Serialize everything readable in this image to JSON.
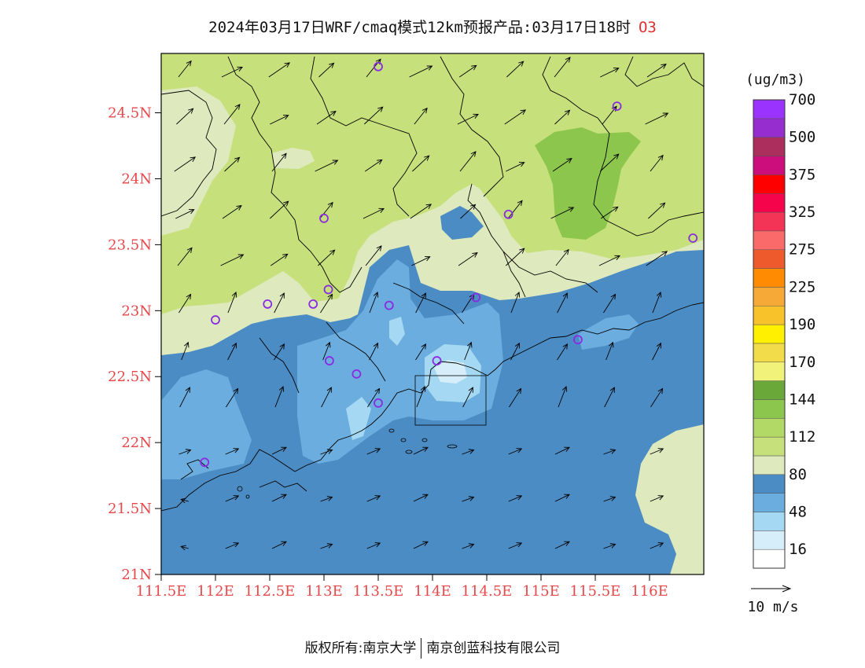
{
  "header": {
    "title": "2024年03月17日WRF/cmaq模式12km预报产品:03月17日18时",
    "pollutant": "O3"
  },
  "axes": {
    "lat_labels": [
      "24.5N",
      "24N",
      "23.5N",
      "23N",
      "22.5N",
      "22N",
      "21.5N",
      "21N"
    ],
    "lon_labels": [
      "111.5E",
      "112E",
      "112.5E",
      "113E",
      "113.5E",
      "114E",
      "114.5E",
      "115E",
      "115.5E",
      "116E"
    ],
    "label_color": "#e8474a"
  },
  "legend": {
    "unit": "(ug/m3)",
    "bands": [
      {
        "color": "#ffffff"
      },
      {
        "color": "#d6eef9"
      },
      {
        "color": "#a5d8f2"
      },
      {
        "color": "#6badde"
      },
      {
        "color": "#4b8cc4"
      },
      {
        "color": "#dfe9be"
      },
      {
        "color": "#c6e07c"
      },
      {
        "color": "#b2d865"
      },
      {
        "color": "#8dc64c"
      },
      {
        "color": "#6aa83a"
      },
      {
        "color": "#f1f27a"
      },
      {
        "color": "#f2dc4a"
      },
      {
        "color": "#fef000"
      },
      {
        "color": "#f8c22a"
      },
      {
        "color": "#f7a937"
      },
      {
        "color": "#fe8b01"
      },
      {
        "color": "#ef5a2c"
      },
      {
        "color": "#fb6a6a"
      },
      {
        "color": "#f33456"
      },
      {
        "color": "#f5044c"
      },
      {
        "color": "#fe0000"
      },
      {
        "color": "#cb0e7c"
      },
      {
        "color": "#ab2e5d"
      },
      {
        "color": "#962dce"
      },
      {
        "color": "#9b33ff"
      }
    ],
    "labels": [
      "16",
      "48",
      "80",
      "112",
      "144",
      "170",
      "190",
      "225",
      "275",
      "325",
      "375",
      "500",
      "700"
    ]
  },
  "wind_reference": {
    "label": "10 m/s"
  },
  "footer": {
    "copyright": "版权所有:南京大学",
    "company": "南京创蓝科技有限公司"
  },
  "map_data": {
    "lon_range": [
      111.5,
      116.5
    ],
    "lat_range": [
      21.0,
      24.95
    ],
    "stations": [
      {
        "lon": 113.5,
        "lat": 24.85
      },
      {
        "lon": 115.7,
        "lat": 24.55
      },
      {
        "lon": 113.0,
        "lat": 23.7
      },
      {
        "lon": 114.7,
        "lat": 23.73
      },
      {
        "lon": 116.4,
        "lat": 23.55
      },
      {
        "lon": 113.04,
        "lat": 23.16
      },
      {
        "lon": 112.48,
        "lat": 23.05
      },
      {
        "lon": 112.0,
        "lat": 22.93
      },
      {
        "lon": 112.9,
        "lat": 23.05
      },
      {
        "lon": 113.6,
        "lat": 23.04
      },
      {
        "lon": 114.4,
        "lat": 23.1
      },
      {
        "lon": 115.34,
        "lat": 22.78
      },
      {
        "lon": 113.05,
        "lat": 22.62
      },
      {
        "lon": 113.3,
        "lat": 22.52
      },
      {
        "lon": 114.04,
        "lat": 22.62
      },
      {
        "lon": 113.5,
        "lat": 22.3
      },
      {
        "lon": 111.9,
        "lat": 21.85
      }
    ],
    "box": {
      "lon": [
        113.8,
        114.45
      ],
      "lat": [
        22.18,
        22.57
      ]
    }
  },
  "colors": {
    "station": "#8a2be2",
    "coast": "#000000",
    "arrow": "#000000"
  }
}
